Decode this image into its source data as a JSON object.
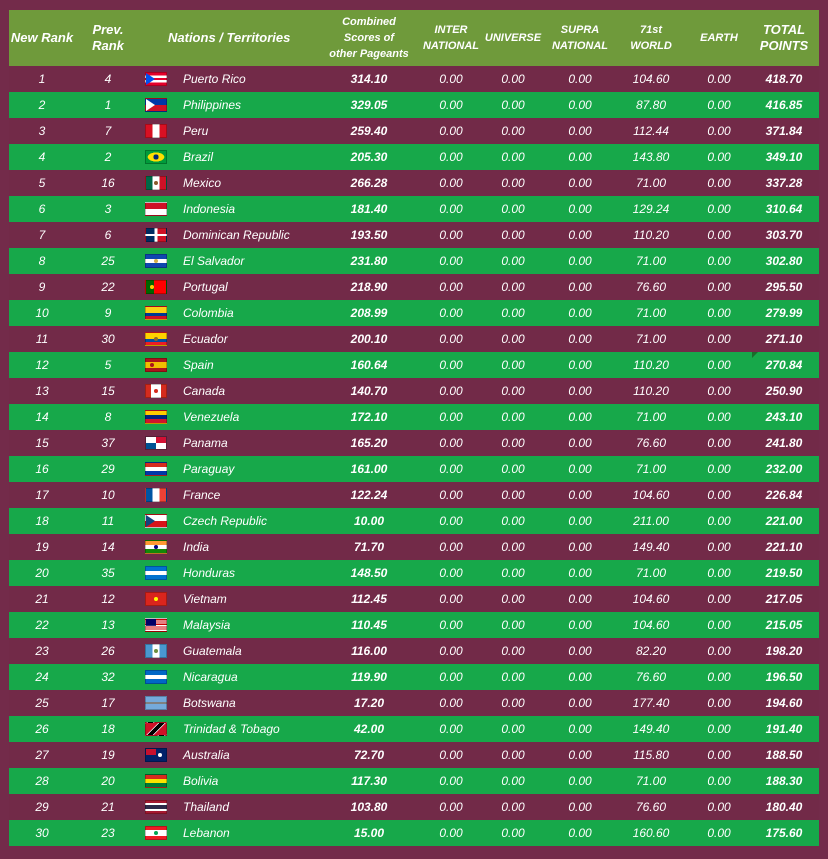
{
  "header": {
    "new_rank": "New Rank",
    "prev_rank": "Prev. Rank",
    "nations": "Nations / Territories",
    "combined": "Combined\nScores of\nother Pageants",
    "international": "INTER\nNATIONAL",
    "universe": "UNIVERSE",
    "supranational": "SUPRA\nNATIONAL",
    "world": "71st\nWORLD",
    "earth": "EARTH",
    "total": "TOTAL\nPOINTS"
  },
  "rows": [
    {
      "new_rank": "1",
      "prev_rank": "4",
      "nation": "Puerto Rico",
      "flag": "puerto-rico",
      "combined": "314.10",
      "international": "0.00",
      "universe": "0.00",
      "supranational": "0.00",
      "world": "104.60",
      "earth": "0.00",
      "total": "418.70"
    },
    {
      "new_rank": "2",
      "prev_rank": "1",
      "nation": "Philippines",
      "flag": "philippines",
      "combined": "329.05",
      "international": "0.00",
      "universe": "0.00",
      "supranational": "0.00",
      "world": "87.80",
      "earth": "0.00",
      "total": "416.85"
    },
    {
      "new_rank": "3",
      "prev_rank": "7",
      "nation": "Peru",
      "flag": "peru",
      "combined": "259.40",
      "international": "0.00",
      "universe": "0.00",
      "supranational": "0.00",
      "world": "112.44",
      "earth": "0.00",
      "total": "371.84"
    },
    {
      "new_rank": "4",
      "prev_rank": "2",
      "nation": "Brazil",
      "flag": "brazil",
      "combined": "205.30",
      "international": "0.00",
      "universe": "0.00",
      "supranational": "0.00",
      "world": "143.80",
      "earth": "0.00",
      "total": "349.10"
    },
    {
      "new_rank": "5",
      "prev_rank": "16",
      "nation": "Mexico",
      "flag": "mexico",
      "combined": "266.28",
      "international": "0.00",
      "universe": "0.00",
      "supranational": "0.00",
      "world": "71.00",
      "earth": "0.00",
      "total": "337.28"
    },
    {
      "new_rank": "6",
      "prev_rank": "3",
      "nation": "Indonesia",
      "flag": "indonesia",
      "combined": "181.40",
      "international": "0.00",
      "universe": "0.00",
      "supranational": "0.00",
      "world": "129.24",
      "earth": "0.00",
      "total": "310.64"
    },
    {
      "new_rank": "7",
      "prev_rank": "6",
      "nation": "Dominican Republic",
      "flag": "dominican-republic",
      "combined": "193.50",
      "international": "0.00",
      "universe": "0.00",
      "supranational": "0.00",
      "world": "110.20",
      "earth": "0.00",
      "total": "303.70"
    },
    {
      "new_rank": "8",
      "prev_rank": "25",
      "nation": "El Salvador",
      "flag": "el-salvador",
      "combined": "231.80",
      "international": "0.00",
      "universe": "0.00",
      "supranational": "0.00",
      "world": "71.00",
      "earth": "0.00",
      "total": "302.80"
    },
    {
      "new_rank": "9",
      "prev_rank": "22",
      "nation": "Portugal",
      "flag": "portugal",
      "combined": "218.90",
      "international": "0.00",
      "universe": "0.00",
      "supranational": "0.00",
      "world": "76.60",
      "earth": "0.00",
      "total": "295.50"
    },
    {
      "new_rank": "10",
      "prev_rank": "9",
      "nation": "Colombia",
      "flag": "colombia",
      "combined": "208.99",
      "international": "0.00",
      "universe": "0.00",
      "supranational": "0.00",
      "world": "71.00",
      "earth": "0.00",
      "total": "279.99"
    },
    {
      "new_rank": "11",
      "prev_rank": "30",
      "nation": "Ecuador",
      "flag": "ecuador",
      "combined": "200.10",
      "international": "0.00",
      "universe": "0.00",
      "supranational": "0.00",
      "world": "71.00",
      "earth": "0.00",
      "total": "271.10"
    },
    {
      "new_rank": "12",
      "prev_rank": "5",
      "nation": "Spain",
      "flag": "spain",
      "combined": "160.64",
      "international": "0.00",
      "universe": "0.00",
      "supranational": "0.00",
      "world": "110.20",
      "earth": "0.00",
      "total": "270.84",
      "marker": true
    },
    {
      "new_rank": "13",
      "prev_rank": "15",
      "nation": "Canada",
      "flag": "canada",
      "combined": "140.70",
      "international": "0.00",
      "universe": "0.00",
      "supranational": "0.00",
      "world": "110.20",
      "earth": "0.00",
      "total": "250.90"
    },
    {
      "new_rank": "14",
      "prev_rank": "8",
      "nation": "Venezuela",
      "flag": "venezuela",
      "combined": "172.10",
      "international": "0.00",
      "universe": "0.00",
      "supranational": "0.00",
      "world": "71.00",
      "earth": "0.00",
      "total": "243.10"
    },
    {
      "new_rank": "15",
      "prev_rank": "37",
      "nation": "Panama",
      "flag": "panama",
      "combined": "165.20",
      "international": "0.00",
      "universe": "0.00",
      "supranational": "0.00",
      "world": "76.60",
      "earth": "0.00",
      "total": "241.80"
    },
    {
      "new_rank": "16",
      "prev_rank": "29",
      "nation": "Paraguay",
      "flag": "paraguay",
      "combined": "161.00",
      "international": "0.00",
      "universe": "0.00",
      "supranational": "0.00",
      "world": "71.00",
      "earth": "0.00",
      "total": "232.00"
    },
    {
      "new_rank": "17",
      "prev_rank": "10",
      "nation": "France",
      "flag": "france",
      "combined": "122.24",
      "international": "0.00",
      "universe": "0.00",
      "supranational": "0.00",
      "world": "104.60",
      "earth": "0.00",
      "total": "226.84"
    },
    {
      "new_rank": "18",
      "prev_rank": "11",
      "nation": "Czech Republic",
      "flag": "czech-republic",
      "combined": "10.00",
      "international": "0.00",
      "universe": "0.00",
      "supranational": "0.00",
      "world": "211.00",
      "earth": "0.00",
      "total": "221.00"
    },
    {
      "new_rank": "19",
      "prev_rank": "14",
      "nation": "India",
      "flag": "india",
      "combined": "71.70",
      "international": "0.00",
      "universe": "0.00",
      "supranational": "0.00",
      "world": "149.40",
      "earth": "0.00",
      "total": "221.10"
    },
    {
      "new_rank": "20",
      "prev_rank": "35",
      "nation": "Honduras",
      "flag": "honduras",
      "combined": "148.50",
      "international": "0.00",
      "universe": "0.00",
      "supranational": "0.00",
      "world": "71.00",
      "earth": "0.00",
      "total": "219.50"
    },
    {
      "new_rank": "21",
      "prev_rank": "12",
      "nation": "Vietnam",
      "flag": "vietnam",
      "combined": "112.45",
      "international": "0.00",
      "universe": "0.00",
      "supranational": "0.00",
      "world": "104.60",
      "earth": "0.00",
      "total": "217.05"
    },
    {
      "new_rank": "22",
      "prev_rank": "13",
      "nation": "Malaysia",
      "flag": "malaysia",
      "combined": "110.45",
      "international": "0.00",
      "universe": "0.00",
      "supranational": "0.00",
      "world": "104.60",
      "earth": "0.00",
      "total": "215.05"
    },
    {
      "new_rank": "23",
      "prev_rank": "26",
      "nation": "Guatemala",
      "flag": "guatemala",
      "combined": "116.00",
      "international": "0.00",
      "universe": "0.00",
      "supranational": "0.00",
      "world": "82.20",
      "earth": "0.00",
      "total": "198.20"
    },
    {
      "new_rank": "24",
      "prev_rank": "32",
      "nation": "Nicaragua",
      "flag": "nicaragua",
      "combined": "119.90",
      "international": "0.00",
      "universe": "0.00",
      "supranational": "0.00",
      "world": "76.60",
      "earth": "0.00",
      "total": "196.50"
    },
    {
      "new_rank": "25",
      "prev_rank": "17",
      "nation": "Botswana",
      "flag": "botswana",
      "combined": "17.20",
      "international": "0.00",
      "universe": "0.00",
      "supranational": "0.00",
      "world": "177.40",
      "earth": "0.00",
      "total": "194.60"
    },
    {
      "new_rank": "26",
      "prev_rank": "18",
      "nation": "Trinidad & Tobago",
      "flag": "trinidad-tobago",
      "combined": "42.00",
      "international": "0.00",
      "universe": "0.00",
      "supranational": "0.00",
      "world": "149.40",
      "earth": "0.00",
      "total": "191.40"
    },
    {
      "new_rank": "27",
      "prev_rank": "19",
      "nation": "Australia",
      "flag": "australia",
      "combined": "72.70",
      "international": "0.00",
      "universe": "0.00",
      "supranational": "0.00",
      "world": "115.80",
      "earth": "0.00",
      "total": "188.50"
    },
    {
      "new_rank": "28",
      "prev_rank": "20",
      "nation": "Bolivia",
      "flag": "bolivia",
      "combined": "117.30",
      "international": "0.00",
      "universe": "0.00",
      "supranational": "0.00",
      "world": "71.00",
      "earth": "0.00",
      "total": "188.30"
    },
    {
      "new_rank": "29",
      "prev_rank": "21",
      "nation": "Thailand",
      "flag": "thailand",
      "combined": "103.80",
      "international": "0.00",
      "universe": "0.00",
      "supranational": "0.00",
      "world": "76.60",
      "earth": "0.00",
      "total": "180.40"
    },
    {
      "new_rank": "30",
      "prev_rank": "23",
      "nation": "Lebanon",
      "flag": "lebanon",
      "combined": "15.00",
      "international": "0.00",
      "universe": "0.00",
      "supranational": "0.00",
      "world": "160.60",
      "earth": "0.00",
      "total": "175.60"
    }
  ],
  "colors": {
    "background": "#732b4a",
    "header": "#6f9a3b",
    "row_odd": "#722a48",
    "row_even": "#17a84a",
    "text": "#ffffff"
  }
}
